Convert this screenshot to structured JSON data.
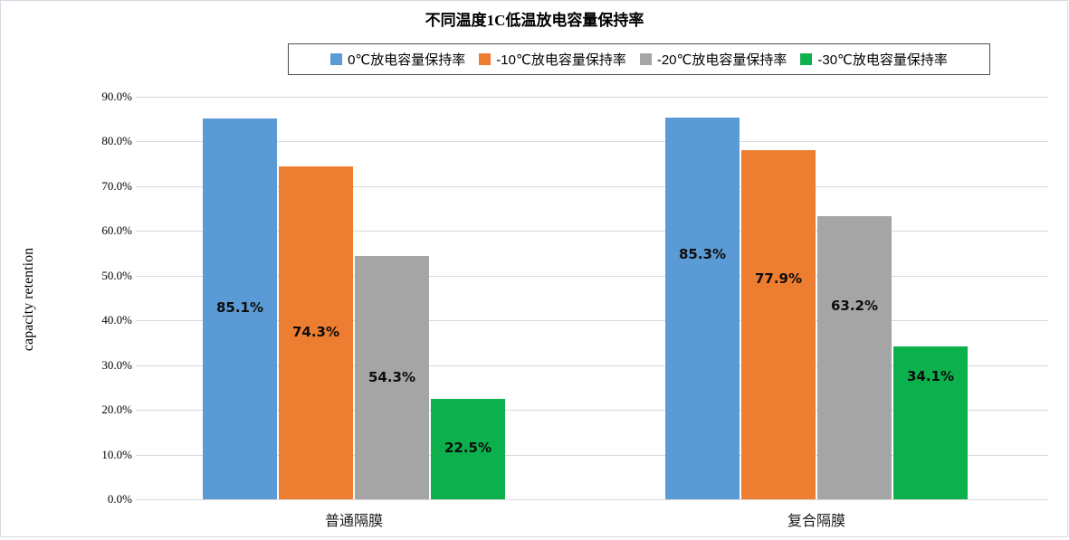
{
  "title": "不同温度1C低温放电容量保持率",
  "chart_data": {
    "type": "bar",
    "title": "不同温度1C低温放电容量保持率",
    "categories": [
      "普通隔膜",
      "复合隔膜"
    ],
    "series": [
      {
        "name": "0℃放电容量保持率",
        "color": "#5B9BD5",
        "values": [
          85.1,
          85.3
        ]
      },
      {
        "name": "-10℃放电容量保持率",
        "color": "#ED7D31",
        "values": [
          74.3,
          77.9
        ]
      },
      {
        "name": "-20℃放电容量保持率",
        "color": "#A5A5A5",
        "values": [
          54.3,
          63.2
        ]
      },
      {
        "name": "-30℃放电容量保持率",
        "color": "#0CB04C",
        "values": [
          22.5,
          34.1
        ]
      }
    ],
    "data_labels": [
      [
        "85.1%",
        "74.3%",
        "54.3%",
        "22.5%"
      ],
      [
        "85.3%",
        "77.9%",
        "63.2%",
        "34.1%"
      ]
    ],
    "xlabel": "",
    "ylabel": "capacity retention",
    "ylim": [
      0,
      90
    ],
    "ytick_labels": [
      "0.0%",
      "10.0%",
      "20.0%",
      "30.0%",
      "40.0%",
      "50.0%",
      "60.0%",
      "70.0%",
      "80.0%",
      "90.0%"
    ],
    "grid": true,
    "legend_position": "top",
    "gridline_color": "#d9d9d9",
    "layout_hints": {
      "label_frac_from_bottom": [
        [
          0.5,
          0.5,
          0.5,
          0.5
        ],
        [
          0.64,
          0.63,
          0.68,
          0.8
        ]
      ]
    }
  }
}
